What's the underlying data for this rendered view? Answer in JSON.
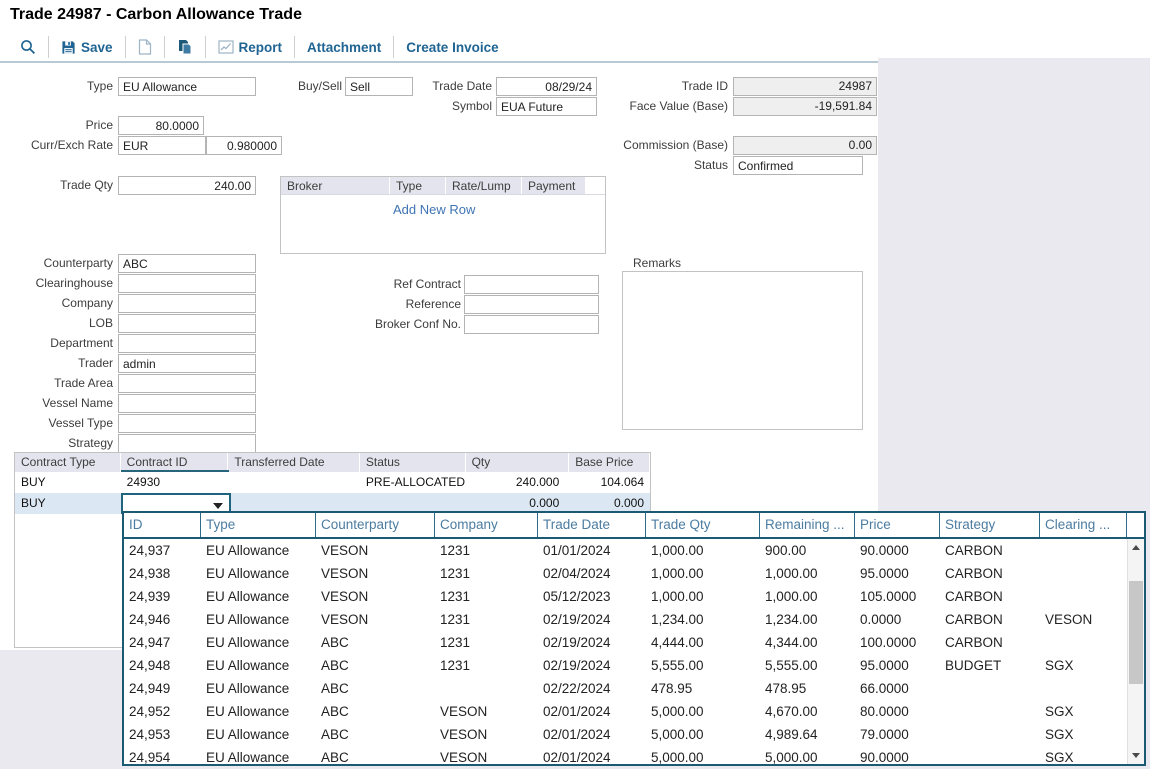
{
  "window": {
    "title": "Trade 24987 - Carbon Allowance Trade"
  },
  "toolbar": {
    "search_icon": "magnifier-icon",
    "save": "Save",
    "new_document_icon": "blank-document-icon",
    "copy_icon": "copy-icon",
    "report": "Report",
    "attachment": "Attachment",
    "create_invoice": "Create Invoice"
  },
  "form": {
    "type": {
      "label": "Type",
      "value": "EU Allowance"
    },
    "buy_sell": {
      "label": "Buy/Sell",
      "value": "Sell"
    },
    "trade_date": {
      "label": "Trade Date",
      "value": "08/29/24"
    },
    "symbol": {
      "label": "Symbol",
      "value": "EUA Future"
    },
    "trade_id": {
      "label": "Trade ID",
      "value": "24987"
    },
    "face_value": {
      "label": "Face Value (Base)",
      "value": "-19,591.84"
    },
    "price": {
      "label": "Price",
      "value": "80.0000"
    },
    "curr_exch": {
      "label": "Curr/Exch Rate",
      "currency": "EUR",
      "rate": "0.980000"
    },
    "commission": {
      "label": "Commission (Base)",
      "value": "0.00"
    },
    "status": {
      "label": "Status",
      "value": "Confirmed"
    },
    "trade_qty": {
      "label": "Trade Qty",
      "value": "240.00"
    },
    "counterparty": {
      "label": "Counterparty",
      "value": "ABC"
    },
    "clearinghouse": {
      "label": "Clearinghouse",
      "value": ""
    },
    "company": {
      "label": "Company",
      "value": ""
    },
    "lob": {
      "label": "LOB",
      "value": ""
    },
    "department": {
      "label": "Department",
      "value": ""
    },
    "trader": {
      "label": "Trader",
      "value": "admin"
    },
    "trade_area": {
      "label": "Trade Area",
      "value": ""
    },
    "vessel_name": {
      "label": "Vessel Name",
      "value": ""
    },
    "vessel_type": {
      "label": "Vessel Type",
      "value": ""
    },
    "strategy": {
      "label": "Strategy",
      "value": ""
    },
    "ref_contract": {
      "label": "Ref Contract",
      "value": ""
    },
    "reference": {
      "label": "Reference",
      "value": ""
    },
    "broker_conf_no": {
      "label": "Broker Conf No.",
      "value": ""
    },
    "remarks": {
      "label": "Remarks",
      "value": ""
    }
  },
  "broker_table": {
    "columns": [
      "Broker",
      "Type",
      "Rate/Lump",
      "Payment"
    ],
    "add_new_row": "Add New Row"
  },
  "contract_table": {
    "columns": [
      "Contract Type",
      "Contract ID",
      "Transferred Date",
      "Status",
      "Qty",
      "Base Price"
    ],
    "rows": [
      {
        "contract_type": "BUY",
        "contract_id": "24930",
        "transferred_date": "",
        "status": "PRE-ALLOCATED",
        "qty": "240.000",
        "base_price": "104.064"
      },
      {
        "contract_type": "BUY",
        "contract_id": "",
        "transferred_date": "",
        "status": "",
        "qty": "0.000",
        "base_price": "0.000"
      }
    ]
  },
  "dropdown": {
    "columns": [
      "ID",
      "Type",
      "Counterparty",
      "Company",
      "Trade Date",
      "Trade Qty",
      "Remaining ...",
      "Price",
      "Strategy",
      "Clearing ..."
    ],
    "rows": [
      [
        "24,937",
        "EU Allowance",
        "VESON",
        "1231",
        "01/01/2024",
        "1,000.00",
        "900.00",
        "90.0000",
        "CARBON",
        ""
      ],
      [
        "24,938",
        "EU Allowance",
        "VESON",
        "1231",
        "02/04/2024",
        "1,000.00",
        "1,000.00",
        "95.0000",
        "CARBON",
        ""
      ],
      [
        "24,939",
        "EU Allowance",
        "VESON",
        "1231",
        "05/12/2023",
        "1,000.00",
        "1,000.00",
        "105.0000",
        "CARBON",
        ""
      ],
      [
        "24,946",
        "EU Allowance",
        "VESON",
        "1231",
        "02/19/2024",
        "1,234.00",
        "1,234.00",
        "0.0000",
        "CARBON",
        "VESON"
      ],
      [
        "24,947",
        "EU Allowance",
        "ABC",
        "1231",
        "02/19/2024",
        "4,444.00",
        "4,344.00",
        "100.0000",
        "CARBON",
        ""
      ],
      [
        "24,948",
        "EU Allowance",
        "ABC",
        "1231",
        "02/19/2024",
        "5,555.00",
        "5,555.00",
        "95.0000",
        "BUDGET",
        "SGX"
      ],
      [
        "24,949",
        "EU Allowance",
        "ABC",
        "",
        "02/22/2024",
        "478.95",
        "478.95",
        "66.0000",
        "",
        ""
      ],
      [
        "24,952",
        "EU Allowance",
        "ABC",
        "VESON",
        "02/01/2024",
        "5,000.00",
        "4,670.00",
        "80.0000",
        "",
        "SGX"
      ],
      [
        "24,953",
        "EU Allowance",
        "ABC",
        "VESON",
        "02/01/2024",
        "5,000.00",
        "4,989.64",
        "79.0000",
        "",
        "SGX"
      ],
      [
        "24,954",
        "EU Allowance",
        "ABC",
        "VESON",
        "02/01/2024",
        "5,000.00",
        "5,000.00",
        "90.0000",
        "",
        "SGX"
      ]
    ]
  },
  "colors": {
    "toolbar_text": "#1f6492",
    "accent_teal": "#1b5a72",
    "panel_grey": "#e9e9ef",
    "table_header_bg": "#e4e4ee",
    "row_highlight": "#dbe7f3",
    "link_blue": "#3f74b3",
    "dropdown_header_text": "#4b7ca1",
    "readonly_bg": "#efefef"
  }
}
